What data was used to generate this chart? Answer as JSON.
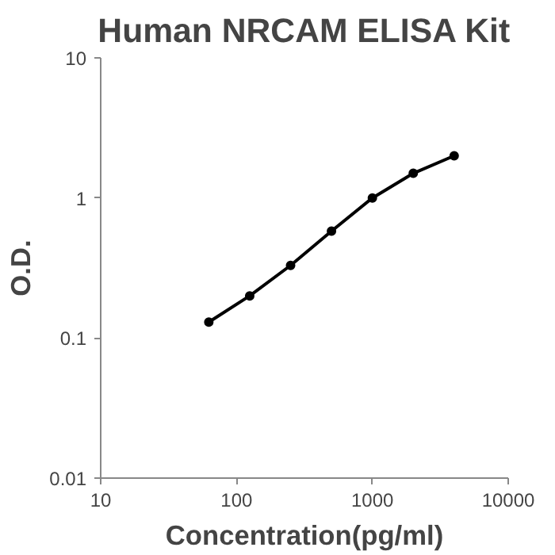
{
  "chart_data": {
    "type": "line",
    "title": "Human NRCAM ELISA Kit",
    "xlabel": "Concentration(pg/ml)",
    "ylabel": "O.D.",
    "x": [
      62.5,
      125,
      250,
      500,
      1000,
      2000,
      4000
    ],
    "series": [
      {
        "color": "#000000",
        "values": [
          0.13,
          0.2,
          0.33,
          0.58,
          1.0,
          1.5,
          2.0
        ]
      }
    ],
    "xlim": [
      10,
      10000
    ],
    "ylim": [
      0.01,
      10
    ],
    "xticks": [
      10,
      100,
      1000,
      10000
    ],
    "yticks": [
      0.01,
      0.1,
      1,
      10
    ],
    "log": "xy",
    "grid": false,
    "marker": "circle",
    "line_style": "solid"
  }
}
